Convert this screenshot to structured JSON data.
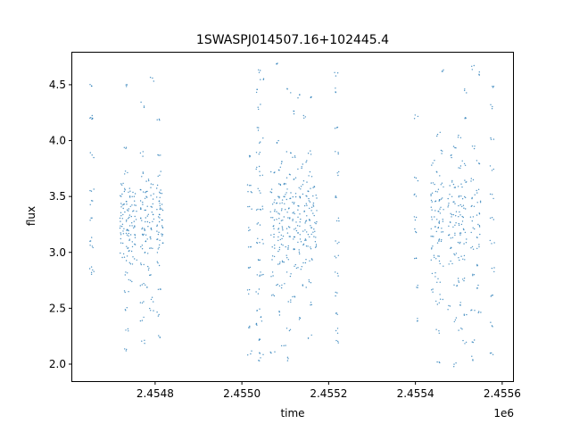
{
  "chart_data": {
    "type": "scatter",
    "title": "1SWASPJ014507.16+102445.4",
    "xlabel": "time",
    "ylabel": "flux",
    "x_offset_label": "1e6",
    "xlim": [
      2454609,
      2455627
    ],
    "ylim": [
      1.848,
      4.795
    ],
    "x_ticks": [
      2454800,
      2455000,
      2455200,
      2455400,
      2455600
    ],
    "x_tick_labels": [
      "2.4548",
      "2.4550",
      "2.4552",
      "2.4554",
      "2.4556"
    ],
    "y_ticks": [
      2.0,
      2.5,
      3.0,
      3.5,
      4.0,
      4.5
    ],
    "y_tick_labels": [
      "2.0",
      "2.5",
      "3.0",
      "3.5",
      "4.0",
      "4.5"
    ],
    "grid": false,
    "legend": "none",
    "marker_color": "#1f77b4",
    "columns": [
      {
        "x": 2454654,
        "y": [
          4.49,
          4.22,
          4.18,
          3.87,
          3.55,
          3.45,
          3.3,
          3.12,
          3.05,
          2.85,
          2.82
        ]
      },
      {
        "x": 2454724,
        "y": [
          3.6,
          3.45,
          3.4,
          3.35,
          3.3,
          3.25,
          3.2,
          3.1,
          2.97,
          3.5,
          3.15
        ]
      },
      {
        "x": 2454734,
        "y": [
          4.48,
          3.95,
          3.72,
          3.55,
          3.45,
          3.38,
          3.3,
          3.22,
          3.15,
          3.05,
          2.95,
          2.8,
          2.65,
          2.5,
          2.3,
          2.12
        ]
      },
      {
        "x": 2454743,
        "y": [
          3.55,
          3.48,
          3.4,
          3.32,
          3.26,
          3.18,
          3.1,
          3.02,
          2.9,
          2.75
        ]
      },
      {
        "x": 2454753,
        "y": [
          3.52,
          3.44,
          3.36,
          3.3,
          3.22,
          3.14,
          3.05,
          2.95
        ]
      },
      {
        "x": 2454771,
        "y": [
          4.32,
          3.88,
          3.7,
          3.55,
          3.45,
          3.38,
          3.3,
          3.22,
          3.15,
          3.05,
          2.9,
          2.7,
          2.55,
          2.4,
          2.2
        ]
      },
      {
        "x": 2454781,
        "y": [
          3.65,
          3.55,
          3.48,
          3.4,
          3.32,
          3.25,
          3.18,
          3.1,
          3.0,
          2.85,
          2.7
        ]
      },
      {
        "x": 2454792,
        "y": [
          4.55,
          3.6,
          3.5,
          3.42,
          3.35,
          3.28,
          3.2,
          3.12,
          3.02,
          2.8,
          2.58,
          2.48
        ]
      },
      {
        "x": 2454808,
        "y": [
          4.2,
          3.88,
          3.7,
          3.58,
          3.48,
          3.4,
          3.32,
          3.25,
          3.18,
          3.1,
          3.02,
          2.9,
          2.65,
          2.45,
          2.25
        ]
      },
      {
        "x": 2454814,
        "y": [
          3.55,
          3.45,
          3.38,
          3.3,
          3.22,
          3.15,
          3.08
        ]
      },
      {
        "x": 2455018,
        "y": [
          3.85,
          3.62,
          3.52,
          3.4,
          3.2,
          3.05,
          2.85,
          2.65,
          2.35,
          2.1
        ]
      },
      {
        "x": 2455038,
        "y": [
          4.62,
          4.45,
          4.3,
          4.1,
          3.9,
          3.75,
          3.55,
          3.4,
          3.25,
          3.1,
          2.95,
          2.8,
          2.65,
          2.5,
          2.35,
          2.2,
          2.05
        ]
      },
      {
        "x": 2455045,
        "y": [
          4.55,
          4.0,
          3.7,
          3.4,
          3.1,
          2.8,
          2.4,
          2.1
        ]
      },
      {
        "x": 2455071,
        "y": [
          3.7,
          3.55,
          3.45,
          3.38,
          3.3,
          3.22,
          3.15,
          3.05,
          2.95,
          2.8,
          2.6,
          2.1
        ]
      },
      {
        "x": 2455084,
        "y": [
          4.67,
          4.0,
          3.75,
          3.6,
          3.5,
          3.42,
          3.35,
          3.28,
          3.2,
          3.12,
          3.02,
          2.9,
          2.72,
          2.45
        ]
      },
      {
        "x": 2455096,
        "y": [
          3.8,
          3.62,
          3.52,
          3.45,
          3.38,
          3.3,
          3.22,
          3.14,
          3.05,
          2.92,
          2.7,
          2.15
        ]
      },
      {
        "x": 2455108,
        "y": [
          4.45,
          3.9,
          3.68,
          3.55,
          3.46,
          3.38,
          3.3,
          3.22,
          3.15,
          3.05,
          2.95,
          2.8,
          2.55,
          2.3,
          2.05
        ]
      },
      {
        "x": 2455121,
        "y": [
          4.25,
          3.85,
          3.65,
          3.52,
          3.44,
          3.36,
          3.28,
          3.2,
          3.12,
          3.02,
          2.88,
          2.6
        ]
      },
      {
        "x": 2455133,
        "y": [
          4.4,
          3.75,
          3.58,
          3.48,
          3.4,
          3.32,
          3.25,
          3.18,
          3.1,
          3.0,
          2.85,
          2.4
        ]
      },
      {
        "x": 2455145,
        "y": [
          4.2,
          3.8,
          3.62,
          3.5,
          3.42,
          3.35,
          3.28,
          3.2,
          3.12,
          3.05,
          2.92,
          2.7
        ]
      },
      {
        "x": 2455157,
        "y": [
          4.38,
          3.9,
          3.7,
          3.55,
          3.46,
          3.38,
          3.3,
          3.22,
          3.14,
          3.05,
          2.92,
          2.75,
          2.55,
          2.25
        ]
      },
      {
        "x": 2455168,
        "y": [
          3.6,
          3.5,
          3.42,
          3.35,
          3.28,
          3.2,
          3.12,
          3.05
        ]
      },
      {
        "x": 2455219,
        "y": [
          4.6,
          4.45,
          4.1,
          3.9,
          3.7,
          3.5,
          3.3,
          3.1,
          2.95,
          2.8,
          2.62,
          2.45,
          2.3,
          2.2
        ]
      },
      {
        "x": 2455402,
        "y": [
          4.22,
          3.65,
          3.5,
          3.3,
          3.2,
          2.95,
          2.7,
          2.4
        ]
      },
      {
        "x": 2455441,
        "y": [
          3.8,
          3.62,
          3.52,
          3.45,
          3.38,
          3.3,
          3.22,
          3.14,
          3.05,
          2.95,
          2.8,
          2.65
        ]
      },
      {
        "x": 2455452,
        "y": [
          4.05,
          3.7,
          3.55,
          3.45,
          3.36,
          3.28,
          3.2,
          3.1,
          2.95,
          2.75,
          2.55,
          2.3,
          2.02
        ]
      },
      {
        "x": 2455460,
        "y": [
          4.62,
          3.9,
          3.6,
          3.48,
          3.38,
          3.3,
          3.2,
          3.1,
          2.9,
          2.6
        ]
      },
      {
        "x": 2455480,
        "y": [
          3.85,
          3.62,
          3.5,
          3.42,
          3.34,
          3.25,
          3.15,
          3.05,
          2.9,
          2.5
        ]
      },
      {
        "x": 2455491,
        "y": [
          3.95,
          3.6,
          3.45,
          3.35,
          3.25,
          3.15,
          3.0,
          2.7,
          2.4,
          2.0
        ]
      },
      {
        "x": 2455503,
        "y": [
          4.05,
          3.75,
          3.6,
          3.5,
          3.42,
          3.34,
          3.26,
          3.18,
          3.08,
          2.95,
          2.75,
          2.55,
          2.3
        ]
      },
      {
        "x": 2455513,
        "y": [
          4.45,
          4.2,
          3.8,
          3.62,
          3.5,
          3.4,
          3.3,
          3.2,
          3.1,
          2.95,
          2.75,
          2.45,
          2.2
        ]
      },
      {
        "x": 2455532,
        "y": [
          4.65,
          3.95,
          3.65,
          3.5,
          3.4,
          3.3,
          3.2,
          3.05,
          2.8,
          2.5,
          2.2,
          2.05
        ]
      },
      {
        "x": 2455546,
        "y": [
          4.6,
          3.8,
          3.55,
          3.45,
          3.35,
          3.25,
          3.15,
          3.05,
          2.9,
          2.7,
          2.45
        ]
      },
      {
        "x": 2455577,
        "y": [
          4.5,
          4.3,
          4.0,
          3.75,
          3.5,
          3.3,
          3.1,
          2.85,
          2.6,
          2.35,
          2.1
        ]
      }
    ]
  }
}
